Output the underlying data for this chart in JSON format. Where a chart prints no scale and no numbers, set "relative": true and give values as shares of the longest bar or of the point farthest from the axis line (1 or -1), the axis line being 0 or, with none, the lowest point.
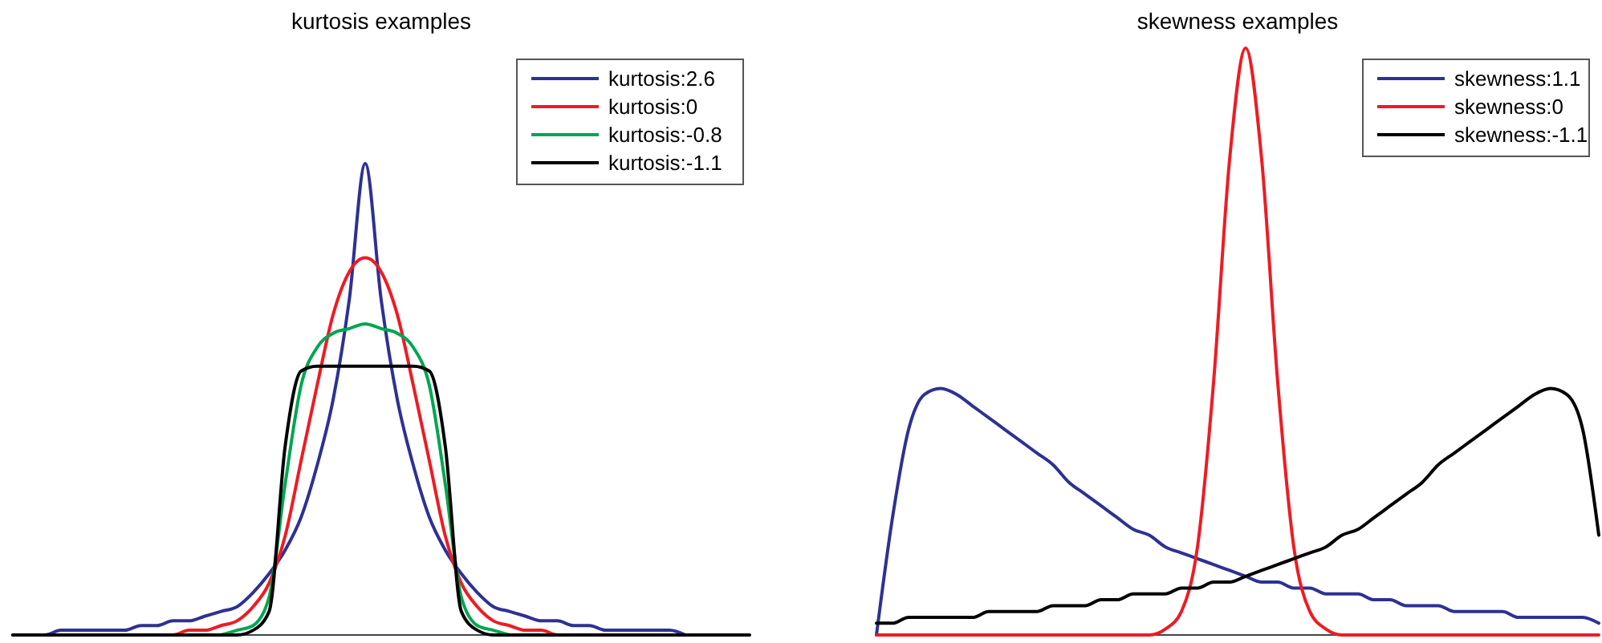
{
  "chart_data": [
    {
      "type": "line",
      "title": "kurtosis examples",
      "relative": true,
      "legend": "top right",
      "categories": [
        null,
        null,
        null,
        null,
        null,
        null,
        null,
        null,
        null,
        null,
        null,
        null,
        null,
        null,
        null,
        null,
        null,
        null,
        null,
        null,
        null,
        null,
        null,
        null,
        null,
        null,
        null,
        null,
        null,
        null,
        null,
        null,
        null,
        null,
        null,
        null,
        null,
        null,
        null,
        null,
        null,
        null,
        null,
        null,
        null,
        null,
        null
      ],
      "series": [
        {
          "name": "kurtosis:2.6",
          "color": "#2e3192",
          "values": [
            0,
            0,
            0,
            0.01,
            0.01,
            0.01,
            0.01,
            0.01,
            0.02,
            0.02,
            0.03,
            0.03,
            0.04,
            0.05,
            0.06,
            0.09,
            0.13,
            0.18,
            0.25,
            0.36,
            0.5,
            0.71,
            1,
            0.71,
            0.5,
            0.36,
            0.25,
            0.18,
            0.13,
            0.09,
            0.06,
            0.05,
            0.04,
            0.03,
            0.03,
            0.02,
            0.02,
            0.01,
            0.01,
            0.01,
            0.01,
            0.01,
            0,
            null,
            null,
            null,
            null
          ]
        },
        {
          "name": "kurtosis:0",
          "color": "#ed1c24",
          "values": [
            null,
            null,
            null,
            null,
            null,
            null,
            null,
            null,
            null,
            0,
            0,
            0.01,
            0.01,
            0.02,
            0.03,
            0.06,
            0.11,
            0.21,
            0.37,
            0.53,
            0.68,
            0.77,
            0.8,
            0.77,
            0.68,
            0.53,
            0.37,
            0.21,
            0.11,
            0.06,
            0.03,
            0.02,
            0.01,
            0.01,
            0,
            0,
            null,
            null,
            null,
            null,
            null,
            null,
            null,
            null,
            null,
            null,
            null
          ]
        },
        {
          "name": "kurtosis:-0.8",
          "color": "#00a651",
          "values": [
            null,
            null,
            null,
            null,
            null,
            null,
            null,
            null,
            null,
            null,
            null,
            null,
            null,
            0,
            0.01,
            0.02,
            0.08,
            0.32,
            0.53,
            0.61,
            0.64,
            0.65,
            0.66,
            0.65,
            0.64,
            0.61,
            0.53,
            0.32,
            0.08,
            0.02,
            0.01,
            0,
            null,
            null,
            null,
            null,
            null,
            null,
            null,
            null,
            null,
            null,
            null,
            null,
            null,
            null,
            null
          ]
        },
        {
          "name": "kurtosis:-1.1",
          "color": "#000000",
          "values": [
            0,
            0,
            0,
            0,
            0,
            0,
            0,
            0,
            0,
            0,
            0,
            0,
            0,
            0,
            0,
            0.01,
            0.05,
            0.4,
            0.56,
            0.57,
            0.57,
            0.57,
            0.57,
            0.57,
            0.57,
            0.57,
            0.56,
            0.4,
            0.05,
            0.01,
            0,
            0,
            0,
            0,
            0,
            0,
            0,
            0,
            0,
            0,
            0,
            0,
            0,
            0,
            0,
            0,
            0
          ]
        }
      ]
    },
    {
      "type": "line",
      "title": "skewness examples",
      "relative": true,
      "legend": "top right",
      "categories": [
        null,
        null,
        null,
        null,
        null,
        null,
        null,
        null,
        null,
        null,
        null,
        null,
        null,
        null,
        null,
        null,
        null,
        null,
        null,
        null,
        null,
        null,
        null,
        null,
        null,
        null,
        null,
        null,
        null,
        null,
        null,
        null,
        null,
        null,
        null,
        null,
        null,
        null,
        null,
        null,
        null,
        null,
        null,
        null,
        null,
        null
      ],
      "series": [
        {
          "name": "skewness:1.1",
          "color": "#2e3192",
          "values": [
            0,
            0.2,
            0.35,
            0.41,
            0.42,
            0.41,
            0.39,
            0.37,
            0.35,
            0.33,
            0.31,
            0.29,
            0.26,
            0.24,
            0.22,
            0.2,
            0.18,
            0.17,
            0.15,
            0.14,
            0.13,
            0.12,
            0.11,
            0.1,
            0.09,
            0.09,
            0.08,
            0.08,
            0.07,
            0.07,
            0.07,
            0.06,
            0.06,
            0.05,
            0.05,
            0.05,
            0.04,
            0.04,
            0.04,
            0.04,
            0.03,
            0.03,
            0.03,
            0.03,
            0.03,
            0.02
          ]
        },
        {
          "name": "skewness:0",
          "color": "#ed1c24",
          "values": [
            0,
            0,
            0,
            0,
            0,
            0,
            0,
            0,
            0,
            0,
            0,
            0,
            0,
            0,
            0,
            0,
            0,
            0,
            0.01,
            0.04,
            0.15,
            0.43,
            0.81,
            1,
            0.81,
            0.43,
            0.15,
            0.04,
            0.01,
            0,
            0,
            0,
            0,
            0,
            0,
            0,
            0,
            0,
            0,
            0,
            0,
            0,
            0,
            0,
            0,
            0
          ]
        },
        {
          "name": "skewness:-1.1",
          "color": "#000000",
          "values": [
            0.02,
            0.02,
            0.03,
            0.03,
            0.03,
            0.03,
            0.03,
            0.04,
            0.04,
            0.04,
            0.04,
            0.05,
            0.05,
            0.05,
            0.06,
            0.06,
            0.07,
            0.07,
            0.07,
            0.08,
            0.08,
            0.09,
            0.09,
            0.1,
            0.11,
            0.12,
            0.13,
            0.14,
            0.15,
            0.17,
            0.18,
            0.2,
            0.22,
            0.24,
            0.26,
            0.29,
            0.31,
            0.33,
            0.35,
            0.37,
            0.39,
            0.41,
            0.42,
            0.41,
            0.35,
            0.17
          ]
        }
      ]
    }
  ]
}
